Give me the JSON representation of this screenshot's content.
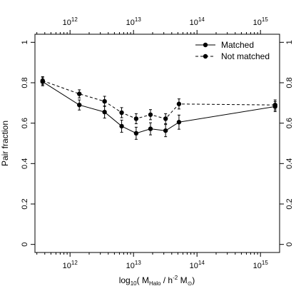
{
  "chart_data": {
    "type": "line",
    "xlabel": "log10( MHalo / h-2 MO)",
    "xlabel_parts": {
      "pre": "log",
      "sub1": "10",
      "mid": "( M",
      "sub2": "Halo",
      "mid2": " / h",
      "sup": "-2",
      "post": " M",
      "sub3": "⊙",
      "end": ")"
    },
    "ylabel": "Pair fraction",
    "xscale": "log",
    "xlim": [
      280000000000.0,
      2000000000000000.0
    ],
    "ylim": [
      -0.04,
      1.04
    ],
    "xticks": [
      {
        "value": 1000000000000.0,
        "base": "10",
        "exp": "12"
      },
      {
        "value": 10000000000000.0,
        "base": "10",
        "exp": "13"
      },
      {
        "value": 100000000000000.0,
        "base": "10",
        "exp": "14"
      },
      {
        "value": 1000000000000000.0,
        "base": "10",
        "exp": "15"
      }
    ],
    "yticks": [
      "0",
      "0.2",
      "0.4",
      "0.6",
      "0.8",
      "1"
    ],
    "legend_position": "top-right",
    "series": [
      {
        "name": "Matched",
        "dash": "solid",
        "points": [
          {
            "x": 370000000000.0,
            "y": 0.805,
            "err": 0.02
          },
          {
            "x": 1400000000000.0,
            "y": 0.69,
            "err": 0.025
          },
          {
            "x": 3500000000000.0,
            "y": 0.655,
            "err": 0.03
          },
          {
            "x": 6500000000000.0,
            "y": 0.585,
            "err": 0.03
          },
          {
            "x": 11000000000000.0,
            "y": 0.55,
            "err": 0.03
          },
          {
            "x": 18500000000000.0,
            "y": 0.572,
            "err": 0.03
          },
          {
            "x": 32000000000000.0,
            "y": 0.563,
            "err": 0.03
          },
          {
            "x": 52000000000000.0,
            "y": 0.605,
            "err": 0.035
          },
          {
            "x": 1700000000000000.0,
            "y": 0.682,
            "err": 0.025
          }
        ]
      },
      {
        "name": "Not matched",
        "dash": "dashed",
        "points": [
          {
            "x": 370000000000.0,
            "y": 0.81,
            "err": 0.02
          },
          {
            "x": 1400000000000.0,
            "y": 0.745,
            "err": 0.02
          },
          {
            "x": 3500000000000.0,
            "y": 0.708,
            "err": 0.025
          },
          {
            "x": 6500000000000.0,
            "y": 0.652,
            "err": 0.025
          },
          {
            "x": 11000000000000.0,
            "y": 0.622,
            "err": 0.025
          },
          {
            "x": 18500000000000.0,
            "y": 0.642,
            "err": 0.025
          },
          {
            "x": 32000000000000.0,
            "y": 0.622,
            "err": 0.025
          },
          {
            "x": 52000000000000.0,
            "y": 0.695,
            "err": 0.025
          },
          {
            "x": 1700000000000000.0,
            "y": 0.69,
            "err": 0.025
          }
        ]
      }
    ]
  }
}
